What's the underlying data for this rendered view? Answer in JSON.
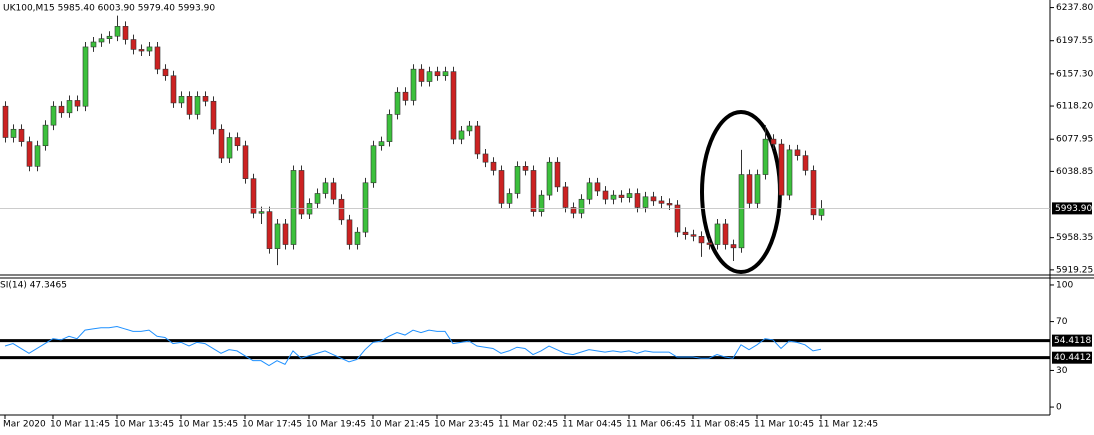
{
  "chart_data": [
    {
      "type": "candlestick",
      "title": "UK100,M15  5985.40 6003.90 5979.40 5993.90",
      "categories": [
        "Mar 2020",
        null,
        null,
        null,
        null,
        null,
        "10 Mar 11:45",
        null,
        null,
        null,
        null,
        null,
        null,
        null,
        "10 Mar 13:45",
        null,
        null,
        null,
        null,
        null,
        null,
        null,
        "10 Mar 15:45",
        null,
        null,
        null,
        null,
        null,
        null,
        null,
        "10 Mar 17:45",
        null,
        null,
        null,
        null,
        null,
        null,
        null,
        "10 Mar 19:45",
        null,
        null,
        null,
        null,
        null,
        null,
        null,
        "10 Mar 21:45",
        null,
        null,
        null,
        null,
        null,
        null,
        null,
        "10 Mar 23:45",
        null,
        null,
        null,
        null,
        null,
        null,
        null,
        "11 Mar 02:45",
        null,
        null,
        null,
        null,
        null,
        null,
        null,
        "11 Mar 04:45",
        null,
        null,
        null,
        null,
        null,
        null,
        null,
        "11 Mar 06:45",
        null,
        null,
        null,
        null,
        null,
        null,
        null,
        "11 Mar 08:45",
        null,
        null,
        null,
        null,
        null,
        null,
        null,
        "11 Mar 10:45",
        null,
        null,
        null,
        null,
        null,
        null,
        null,
        "11 Mar 12:45"
      ],
      "open": [
        6118,
        6080,
        6090,
        6075,
        6045,
        6070,
        6095,
        6118,
        6110,
        6125,
        6118,
        6190,
        6196,
        6200,
        6203,
        6215,
        6199,
        6187,
        6185,
        6190,
        6163,
        6155,
        6122,
        6130,
        6108,
        6130,
        6124,
        6090,
        6055,
        6080,
        6070,
        6030,
        5988,
        5990,
        5945,
        5975,
        5950,
        6040,
        5987,
        6000,
        6012,
        6025,
        6005,
        5980,
        5950,
        5965,
        6025,
        6070,
        6075,
        6108,
        6135,
        6125,
        6163,
        6148,
        6160,
        6155,
        6160,
        6078,
        6088,
        6094,
        6060,
        6050,
        6040,
        6000,
        6012,
        6045,
        6040,
        5990,
        6010,
        6050,
        6020,
        5995,
        5988,
        6005,
        6025,
        6015,
        6005,
        6010,
        6007,
        6012,
        5995,
        6008,
        6003,
        6000,
        5998,
        5965,
        5962,
        5960,
        5952,
        5950,
        5975,
        5950,
        5946,
        6035,
        6000,
        6035,
        6078,
        6072,
        6010,
        6065,
        6058,
        6040,
        5985.4
      ],
      "high": [
        6124,
        6096,
        6096,
        6081,
        6076,
        6101,
        6124,
        6124,
        6131,
        6131,
        6196,
        6202,
        6206,
        6209,
        6228,
        6221,
        6205,
        6193,
        6196,
        6196,
        6169,
        6161,
        6136,
        6136,
        6136,
        6136,
        6130,
        6096,
        6086,
        6086,
        6076,
        6036,
        5996,
        5996,
        5981,
        5981,
        6046,
        6046,
        6006,
        6018,
        6031,
        6031,
        6011,
        5986,
        5971,
        6031,
        6076,
        6081,
        6114,
        6141,
        6141,
        6169,
        6169,
        6166,
        6166,
        6166,
        6166,
        6094,
        6100,
        6100,
        6066,
        6056,
        6046,
        6018,
        6051,
        6051,
        6046,
        6016,
        6056,
        6056,
        6026,
        6001,
        6011,
        6031,
        6031,
        6021,
        6016,
        6016,
        6018,
        6018,
        6014,
        6014,
        6009,
        6006,
        6004,
        5971,
        5968,
        5966,
        5958,
        5981,
        5981,
        5956,
        6065,
        6041,
        6041,
        6095,
        6084,
        6078,
        6071,
        6071,
        6064,
        6046,
        6003.9
      ],
      "low": [
        6074,
        6074,
        6069,
        6039,
        6039,
        6064,
        6089,
        6104,
        6104,
        6112,
        6112,
        6184,
        6190,
        6194,
        6197,
        6193,
        6181,
        6179,
        6179,
        6157,
        6149,
        6116,
        6116,
        6102,
        6102,
        6118,
        6084,
        6049,
        6049,
        6064,
        6024,
        5982,
        5975,
        5939,
        5925,
        5944,
        5944,
        5981,
        5981,
        5994,
        6006,
        5999,
        5974,
        5944,
        5944,
        5959,
        6019,
        6064,
        6069,
        6102,
        6119,
        6119,
        6142,
        6142,
        6149,
        6149,
        6072,
        6072,
        6082,
        6054,
        6044,
        6034,
        5994,
        5994,
        6006,
        6034,
        5984,
        5984,
        6004,
        6014,
        5989,
        5982,
        5982,
        5999,
        6009,
        5999,
        5999,
        6001,
        6001,
        5989,
        5989,
        5997,
        5994,
        5992,
        5959,
        5956,
        5954,
        5935,
        5944,
        5944,
        5944,
        5930,
        5940,
        5994,
        5994,
        6029,
        6066,
        6004,
        6004,
        6052,
        6034,
        5980,
        5979.4
      ],
      "close": [
        6080,
        6090,
        6075,
        6045,
        6070,
        6095,
        6118,
        6110,
        6125,
        6118,
        6190,
        6196,
        6200,
        6203,
        6215,
        6199,
        6187,
        6185,
        6190,
        6163,
        6155,
        6122,
        6130,
        6108,
        6130,
        6124,
        6090,
        6055,
        6080,
        6070,
        6030,
        5988,
        5990,
        5945,
        5975,
        5950,
        6040,
        5987,
        6000,
        6012,
        6025,
        6005,
        5980,
        5950,
        5965,
        6025,
        6070,
        6075,
        6108,
        6135,
        6125,
        6163,
        6148,
        6160,
        6155,
        6160,
        6078,
        6088,
        6094,
        6060,
        6050,
        6040,
        6000,
        6012,
        6045,
        6040,
        5990,
        6010,
        6050,
        6020,
        5995,
        5988,
        6005,
        6025,
        6015,
        6005,
        6010,
        6007,
        6012,
        5995,
        6008,
        6003,
        6000,
        5998,
        5965,
        5962,
        5960,
        5952,
        5950,
        5975,
        5950,
        5946,
        6035,
        6000,
        6035,
        6078,
        6072,
        6010,
        6065,
        6058,
        6040,
        5986,
        5993.9
      ],
      "up_color": "#3cc03c",
      "down_color": "#cc2222",
      "ylim": [
        5913,
        6247
      ],
      "yticks": [
        {
          "value": 6237.8,
          "label": "6237.80"
        },
        {
          "value": 6197.55,
          "label": "6197.55"
        },
        {
          "value": 6157.3,
          "label": "6157.30"
        },
        {
          "value": 6118.2,
          "label": "6118.20"
        },
        {
          "value": 6077.95,
          "label": "6077.95"
        },
        {
          "value": 6038.85,
          "label": "6038.85"
        },
        {
          "value": 5958.35,
          "label": "5958.35"
        },
        {
          "value": 5919.25,
          "label": "5919.25"
        }
      ],
      "current_price": {
        "value": 5993.9,
        "label": "5993.90"
      }
    },
    {
      "type": "line",
      "title": "SI(14) 47.3465",
      "values": [
        50,
        52,
        48,
        44,
        48,
        52,
        56,
        55,
        58,
        56,
        63,
        64,
        65,
        65,
        66,
        64,
        62,
        62,
        63,
        58,
        57,
        52,
        53,
        50,
        53,
        52,
        48,
        44,
        47,
        46,
        42,
        38,
        38,
        34,
        38,
        35,
        46,
        40,
        42,
        44,
        46,
        43,
        40,
        37,
        39,
        47,
        53,
        54,
        58,
        61,
        59,
        63,
        61,
        63,
        62,
        62,
        52,
        53,
        54,
        50,
        49,
        48,
        44,
        46,
        49,
        48,
        43,
        46,
        50,
        47,
        44,
        43,
        45,
        47,
        46,
        45,
        46,
        45,
        46,
        44,
        46,
        45,
        45,
        45,
        41,
        41,
        41,
        40,
        40,
        43,
        41,
        40,
        51,
        47,
        51,
        56,
        55,
        48,
        54,
        53,
        51,
        46,
        47.3465
      ],
      "color": "#1e90ff",
      "ylim": [
        -6.5,
        105.7
      ],
      "yticks": [
        100,
        70,
        30,
        0
      ],
      "levels": [
        {
          "value": 54.4118,
          "label": "54.4118"
        },
        {
          "value": 40.4412,
          "label": "40.4412"
        }
      ]
    }
  ]
}
